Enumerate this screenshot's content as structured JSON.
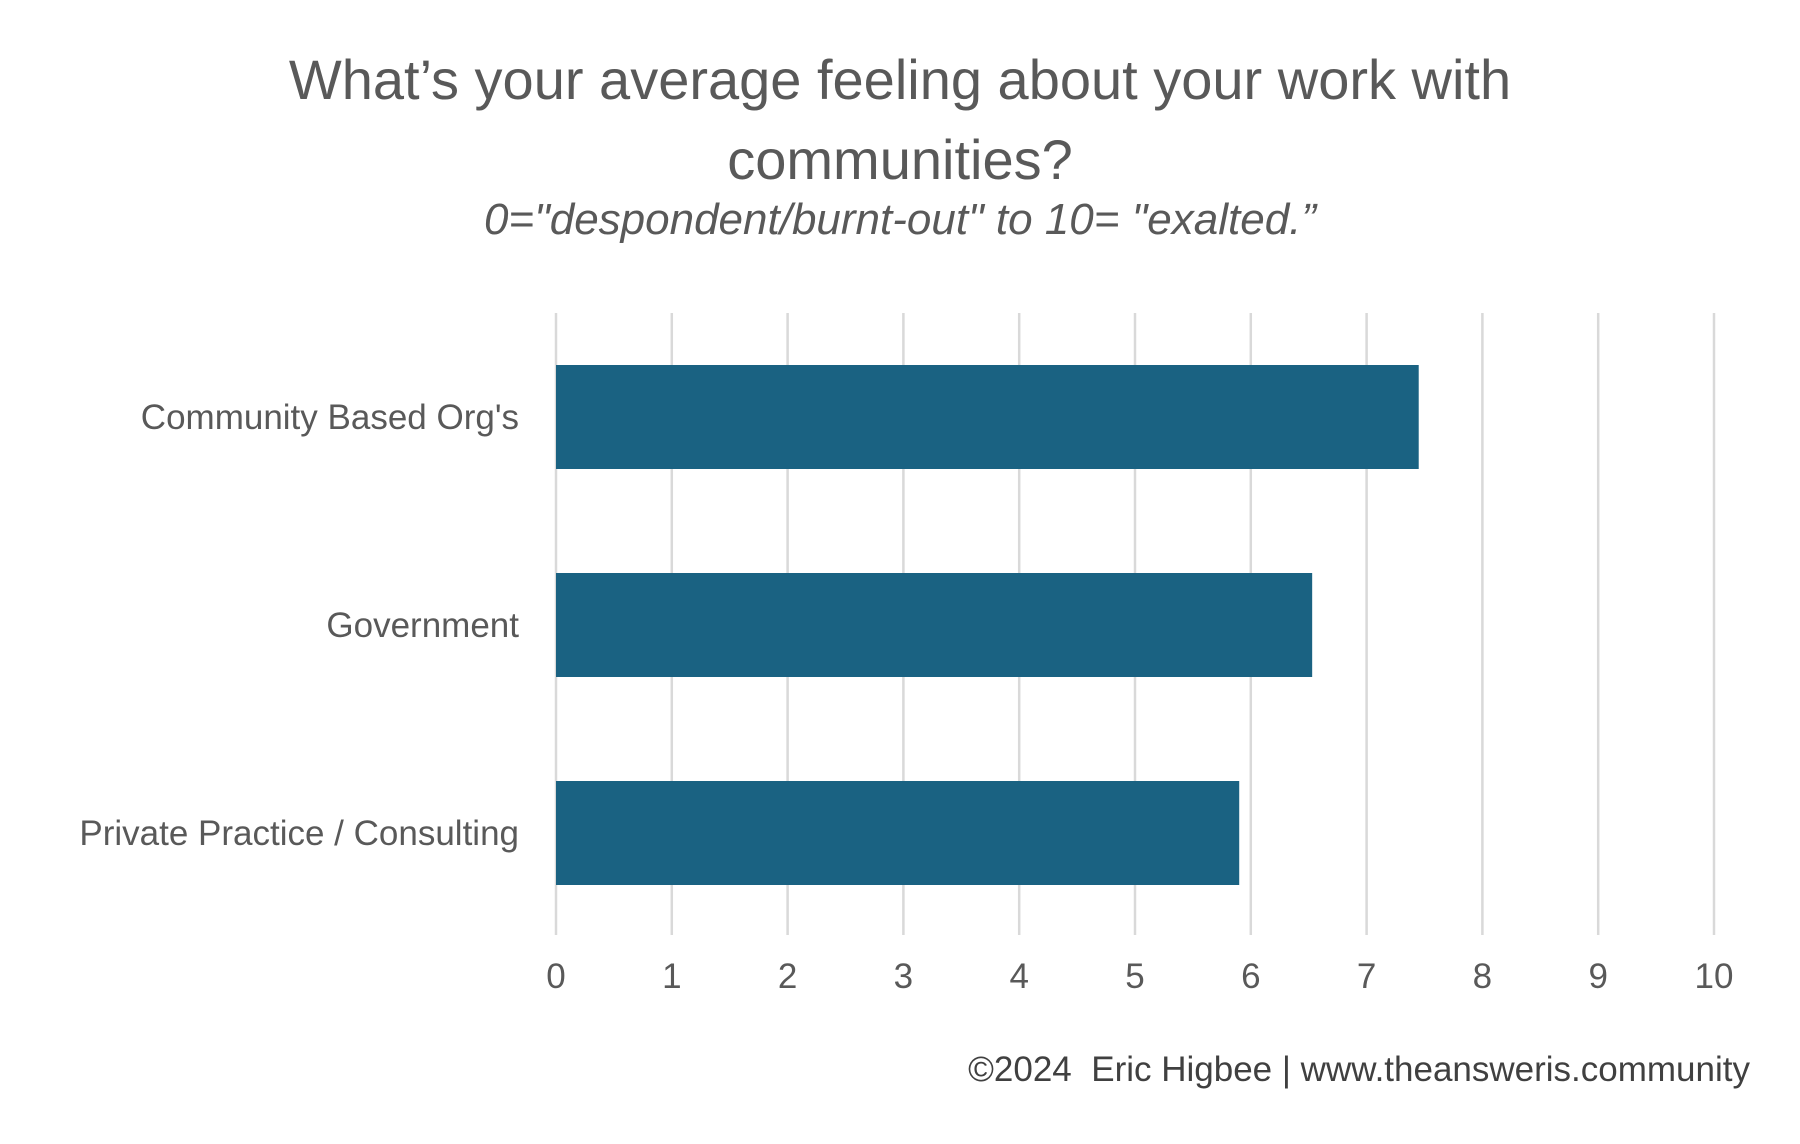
{
  "chart_data": {
    "type": "bar",
    "orientation": "horizontal",
    "title": [
      "What’s your average feeling about your work with",
      "communities?"
    ],
    "subtitle": "0=\"despondent/burnt-out\" to 10= \"exalted.”",
    "categories": [
      "Community Based Org's",
      "Government",
      "Private Practice / Consulting"
    ],
    "values": [
      7.45,
      6.53,
      5.9
    ],
    "xlim": [
      0,
      10
    ],
    "xticks": [
      "0",
      "1",
      "2",
      "3",
      "4",
      "5",
      "6",
      "7",
      "8",
      "9",
      "10"
    ],
    "xlabel": "",
    "ylabel": "",
    "grid": true,
    "legend": false
  },
  "colors": {
    "bar": "#1A6282",
    "grid": "#D9D9D9",
    "text": "#595959"
  },
  "footer": "©2024  Eric Higbee | www.theansweris.community"
}
